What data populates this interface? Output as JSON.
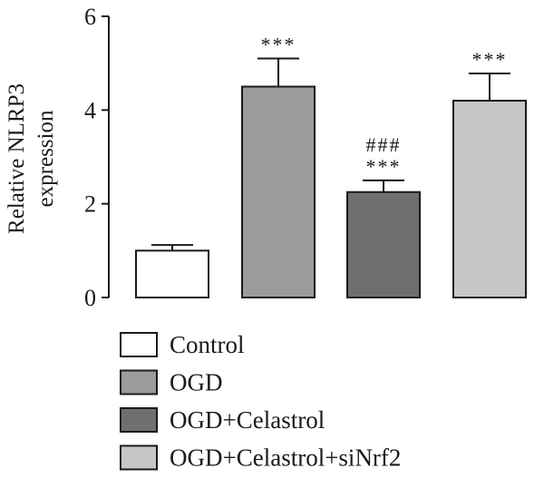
{
  "chart_data": {
    "type": "bar",
    "ylabel_lines": [
      "Relative NLRP3",
      "expression"
    ],
    "ylim": [
      0,
      6
    ],
    "yticks": [
      "0",
      "2",
      "4",
      "6"
    ],
    "categories": [
      "Control",
      "OGD",
      "OGD+Celastrol",
      "OGD+Celastrol+siNrf2"
    ],
    "values": [
      1.0,
      4.5,
      2.25,
      4.2
    ],
    "errors": [
      0.12,
      0.6,
      0.25,
      0.58
    ],
    "annotations": [
      [],
      [
        "***"
      ],
      [
        "###",
        "***"
      ],
      [
        "***"
      ]
    ],
    "colors": [
      "#ffffff",
      "#9a9b9d",
      "#6e6f71",
      "#c5c6c8"
    ],
    "legend": {
      "position": "bottom-left",
      "items": [
        "Control",
        "OGD",
        "OGD+Celastrol",
        "OGD+Celastrol+siNrf2"
      ]
    }
  }
}
